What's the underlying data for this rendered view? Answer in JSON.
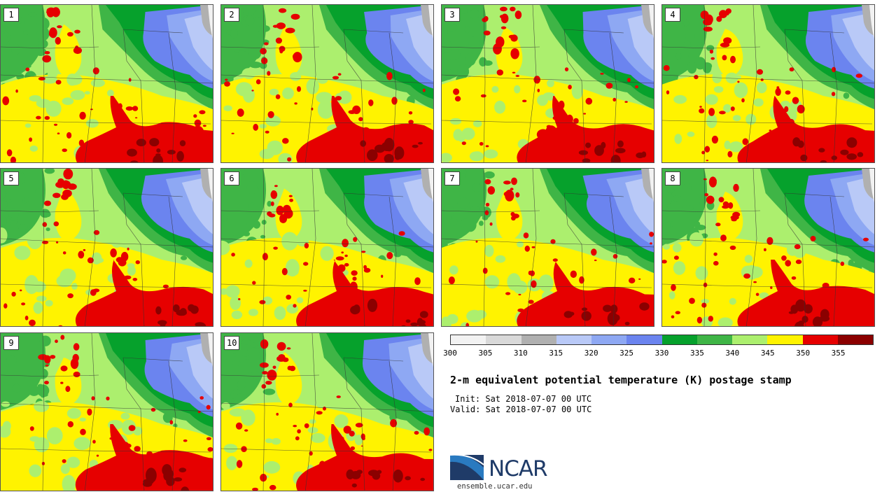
{
  "panels": [
    {
      "label": "1"
    },
    {
      "label": "2"
    },
    {
      "label": "3"
    },
    {
      "label": "4"
    },
    {
      "label": "5"
    },
    {
      "label": "6"
    },
    {
      "label": "7"
    },
    {
      "label": "8"
    },
    {
      "label": "9"
    },
    {
      "label": "10"
    }
  ],
  "colorbar": {
    "colors": [
      "#f2f2f2",
      "#d9d9d9",
      "#b0b0b0",
      "#b9c9f7",
      "#8ea8f3",
      "#6b84ef",
      "#06a12c",
      "#3fb546",
      "#acef6e",
      "#fff300",
      "#e60000",
      "#8b0000"
    ],
    "ticks": [
      "300",
      "305",
      "310",
      "315",
      "320",
      "325",
      "330",
      "335",
      "340",
      "345",
      "350",
      "355"
    ]
  },
  "title": "2-m equivalent potential temperature (K) postage stamp",
  "init_text": "Init: Sat 2018-07-07 00 UTC",
  "valid_text": "Valid: Sat 2018-07-07 00 UTC",
  "logo": {
    "text": "NCAR",
    "url": "ensemble.ucar.edu",
    "colors": {
      "navy": "#1f3b68",
      "blue": "#2a7ac0"
    }
  }
}
